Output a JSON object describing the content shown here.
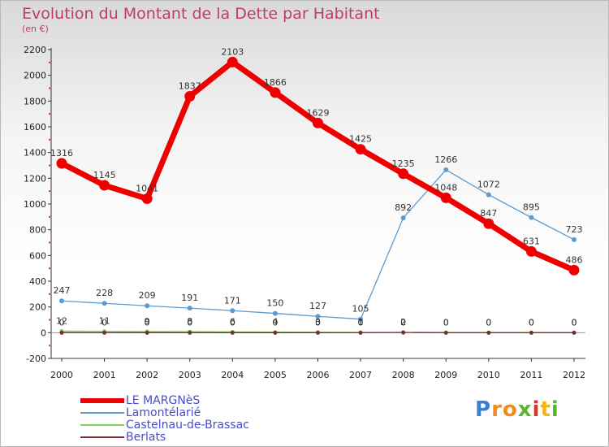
{
  "title": "Evolution du Montant de la Dette par Habitant",
  "subtitle": "(en €)",
  "logo_letters": [
    {
      "ch": "P",
      "color": "#3b7fd4"
    },
    {
      "ch": "r",
      "color": "#f08c1a"
    },
    {
      "ch": "o",
      "color": "#f08c1a"
    },
    {
      "ch": "x",
      "color": "#5bb52e"
    },
    {
      "ch": "i",
      "color": "#d9352a"
    },
    {
      "ch": "t",
      "color": "#f0b61a"
    },
    {
      "ch": "i",
      "color": "#5bb52e"
    }
  ],
  "chart_data": {
    "type": "line",
    "title": "Evolution du Montant de la Dette par Habitant",
    "subtitle": "(en €)",
    "xlabel": "",
    "ylabel": "",
    "x": [
      "2000",
      "2001",
      "2002",
      "2003",
      "2004",
      "2005",
      "2006",
      "2007",
      "2008",
      "2009",
      "2010",
      "2011",
      "2012"
    ],
    "ylim": [
      -200,
      2200
    ],
    "yticks": [
      -200,
      0,
      200,
      400,
      600,
      800,
      1000,
      1200,
      1400,
      1600,
      1800,
      2000,
      2200
    ],
    "grid": false,
    "legend_position": "bottom-left",
    "series": [
      {
        "name": "LE MARGNèS",
        "color": "#ee0000",
        "values": [
          1316,
          1145,
          1041,
          1837,
          2103,
          1866,
          1629,
          1425,
          1235,
          1048,
          847,
          631,
          486
        ]
      },
      {
        "name": "Lamontélarié",
        "color": "#5b9bd0",
        "values": [
          247,
          228,
          209,
          191,
          171,
          150,
          127,
          105,
          892,
          1266,
          1072,
          895,
          723
        ]
      },
      {
        "name": "Castelnau-de-Brassac",
        "color": "#7fd35a",
        "values": [
          12,
          11,
          9,
          8,
          6,
          4,
          3,
          1,
          0,
          0,
          0,
          0,
          0
        ]
      },
      {
        "name": "Berlats",
        "color": "#7a2e2e",
        "values": [
          0,
          0,
          0,
          0,
          0,
          0,
          0,
          0,
          2,
          0,
          0,
          0,
          0
        ]
      }
    ]
  }
}
